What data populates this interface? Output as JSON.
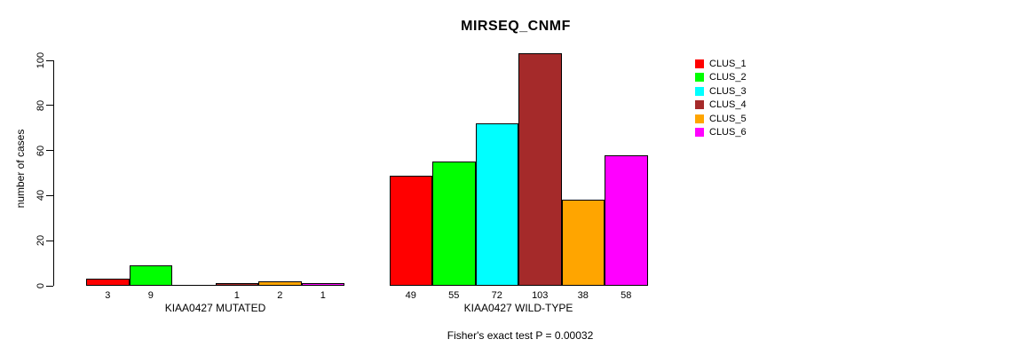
{
  "chart_data": {
    "type": "bar",
    "title": "MIRSEQ_CNMF",
    "ylabel": "number of cases",
    "xlabel": "",
    "ylim": [
      0,
      100
    ],
    "yticks": [
      0,
      20,
      40,
      60,
      80,
      100
    ],
    "grid": false,
    "legend_position": "right",
    "categories": [
      "KIAA0427 MUTATED",
      "KIAA0427 WILD-TYPE"
    ],
    "series": [
      {
        "name": "CLUS_1",
        "color": "#FF0000",
        "values": [
          3,
          49
        ]
      },
      {
        "name": "CLUS_2",
        "color": "#00FF00",
        "values": [
          9,
          55
        ]
      },
      {
        "name": "CLUS_3",
        "color": "#00FFFF",
        "values": [
          0,
          72
        ]
      },
      {
        "name": "CLUS_4",
        "color": "#A52A2A",
        "values": [
          1,
          103
        ]
      },
      {
        "name": "CLUS_5",
        "color": "#FFA500",
        "values": [
          2,
          38
        ]
      },
      {
        "name": "CLUS_6",
        "color": "#FF00FF",
        "values": [
          1,
          58
        ]
      }
    ],
    "bar_value_labels": {
      "KIAA0427 MUTATED": [
        "3",
        "9",
        "",
        "1",
        "2",
        "1"
      ],
      "KIAA0427 WILD-TYPE": [
        "49",
        "55",
        "72",
        "103",
        "38",
        "58"
      ]
    },
    "footnote": "Fisher's exact test P = 0.00032",
    "axis_color": "#000000",
    "bar_border_color": "#000000"
  }
}
